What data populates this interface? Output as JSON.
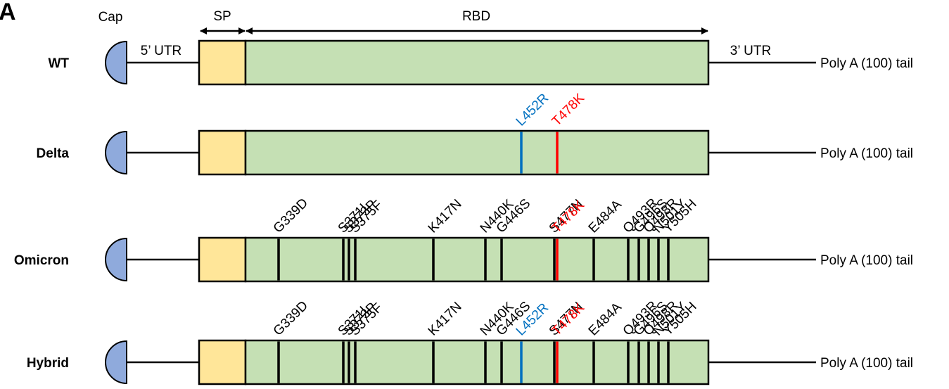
{
  "panel_letter": "A",
  "header": {
    "cap": "Cap",
    "sp": "SP",
    "rbd": "RBD",
    "utr5": "5’ UTR",
    "utr3": "3’ UTR"
  },
  "colors": {
    "cap_fill": "#8FAADC",
    "sp_fill": "#FFE699",
    "rbd_fill": "#C5E0B4",
    "stroke": "#000000",
    "blue_mutation": "#0070C0",
    "red_mutation": "#FF0000"
  },
  "constructs": [
    {
      "label": "WT",
      "tail": "Poly A (100) tail",
      "mutations": []
    },
    {
      "label": "Delta",
      "tail": "Poly A (100) tail",
      "mutations": [
        {
          "name": "L452R",
          "color": "blue"
        },
        {
          "name": "T478K",
          "color": "red"
        }
      ]
    },
    {
      "label": "Omicron",
      "tail": "Poly A (100) tail",
      "mutations": [
        {
          "name": "G339D",
          "color": "black"
        },
        {
          "name": "S371L",
          "color": "black"
        },
        {
          "name": "S373P",
          "color": "black"
        },
        {
          "name": "S375F",
          "color": "black"
        },
        {
          "name": "K417N",
          "color": "black"
        },
        {
          "name": "N440K",
          "color": "black"
        },
        {
          "name": "G446S",
          "color": "black"
        },
        {
          "name": "S477N",
          "color": "black"
        },
        {
          "name": "T478K",
          "color": "red"
        },
        {
          "name": "E484A",
          "color": "black"
        },
        {
          "name": "Q493R",
          "color": "black"
        },
        {
          "name": "G496S",
          "color": "black"
        },
        {
          "name": "Q498R",
          "color": "black"
        },
        {
          "name": "N501Y",
          "color": "black"
        },
        {
          "name": "Y505H",
          "color": "black"
        }
      ]
    },
    {
      "label": "Hybrid",
      "tail": "Poly A (100) tail",
      "mutations": [
        {
          "name": "G339D",
          "color": "black"
        },
        {
          "name": "S371L",
          "color": "black"
        },
        {
          "name": "S373P",
          "color": "black"
        },
        {
          "name": "S375F",
          "color": "black"
        },
        {
          "name": "K417N",
          "color": "black"
        },
        {
          "name": "N440K",
          "color": "black"
        },
        {
          "name": "G446S",
          "color": "black"
        },
        {
          "name": "L452R",
          "color": "blue"
        },
        {
          "name": "S477N",
          "color": "black"
        },
        {
          "name": "T478K",
          "color": "red"
        },
        {
          "name": "E484A",
          "color": "black"
        },
        {
          "name": "Q493R",
          "color": "black"
        },
        {
          "name": "G496S",
          "color": "black"
        },
        {
          "name": "Q498R",
          "color": "black"
        },
        {
          "name": "N501Y",
          "color": "black"
        },
        {
          "name": "Y505H",
          "color": "black"
        }
      ]
    }
  ]
}
